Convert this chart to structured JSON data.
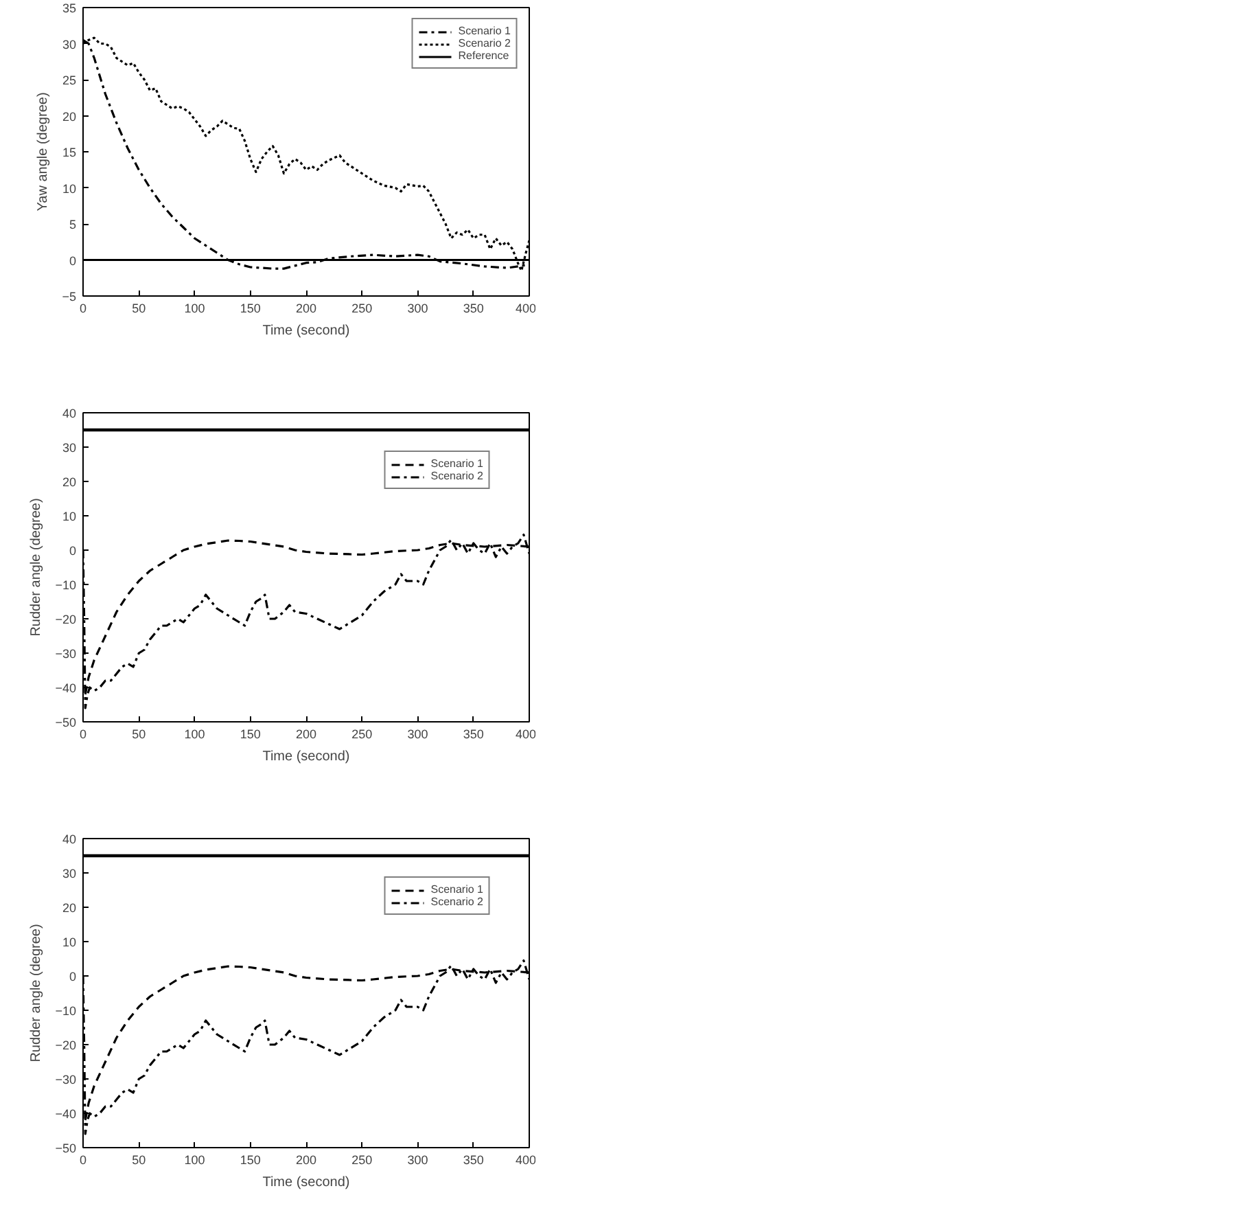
{
  "chart_data": [
    {
      "type": "line",
      "xlabel": "Time (second)",
      "ylabel": "Yaw angle (degree)",
      "xlim": [
        0,
        400
      ],
      "ylim": [
        -5,
        35
      ],
      "xticks": [
        0,
        50,
        100,
        150,
        200,
        250,
        300,
        350,
        400
      ],
      "yticks": [
        -5,
        0,
        5,
        10,
        15,
        20,
        25,
        30,
        35
      ],
      "grid": false,
      "legend": "top right",
      "series": [
        {
          "name": "Scenario 1",
          "color": "#000000",
          "line_style": "dashdot",
          "x": [
            0,
            5,
            10,
            15,
            20,
            30,
            40,
            50,
            60,
            70,
            80,
            90,
            100,
            110,
            120,
            130,
            140,
            150,
            160,
            170,
            180,
            190,
            200,
            210,
            220,
            240,
            260,
            280,
            300,
            310,
            320,
            340,
            360,
            380,
            390,
            400
          ],
          "values": [
            30.5,
            30,
            28,
            25.5,
            23,
            19,
            15.5,
            12.5,
            10,
            7.8,
            6,
            4.5,
            3,
            2,
            1,
            0,
            -0.6,
            -1,
            -1.1,
            -1.2,
            -1.2,
            -0.8,
            -0.4,
            -0.3,
            0.2,
            0.5,
            0.7,
            0.5,
            0.7,
            0.5,
            -0.2,
            -0.5,
            -0.9,
            -1.1,
            -0.9,
            -0.6
          ]
        },
        {
          "name": "Scenario 2",
          "color": "#000000",
          "line_style": "dotted",
          "x": [
            0,
            5,
            10,
            15,
            20,
            25,
            30,
            35,
            40,
            45,
            50,
            55,
            60,
            65,
            70,
            80,
            85,
            90,
            95,
            100,
            105,
            110,
            115,
            120,
            125,
            130,
            135,
            140,
            145,
            150,
            155,
            160,
            165,
            170,
            175,
            180,
            185,
            190,
            195,
            200,
            205,
            210,
            215,
            220,
            230,
            235,
            240,
            250,
            260,
            270,
            280,
            285,
            290,
            300,
            305,
            310,
            315,
            320,
            325,
            330,
            335,
            340,
            345,
            350,
            355,
            360,
            365,
            370,
            375,
            380,
            385,
            390,
            393,
            397,
            400
          ],
          "values": [
            30,
            30.5,
            30.8,
            30,
            30,
            29.5,
            28,
            27.5,
            27,
            27.3,
            26,
            25,
            23.5,
            23.8,
            22,
            21,
            21.3,
            21,
            20.5,
            19.5,
            18.5,
            17.2,
            18,
            18.5,
            19.3,
            18.8,
            18.3,
            18.2,
            16.5,
            14,
            12.2,
            14,
            15,
            15.8,
            14.5,
            12,
            13.3,
            14,
            13.5,
            12.5,
            13,
            12.5,
            13.3,
            13.8,
            14.5,
            13.5,
            13,
            12,
            11,
            10.3,
            10,
            9.5,
            10.5,
            10.2,
            10.3,
            9.5,
            8,
            6.5,
            5,
            3,
            3.8,
            3.5,
            4.2,
            3,
            3.5,
            3.5,
            1.5,
            3,
            2,
            2.5,
            1.5,
            -0.5,
            -1.5,
            1,
            2.7
          ]
        },
        {
          "name": "Reference",
          "color": "#000000",
          "line_style": "solid",
          "x": [
            0,
            400
          ],
          "values": [
            0,
            0
          ]
        }
      ]
    },
    {
      "type": "line",
      "xlabel": "Time (second)",
      "ylabel": "Rudder angle (degree)",
      "xlim": [
        0,
        400
      ],
      "ylim": [
        -50,
        40
      ],
      "xticks": [
        0,
        50,
        100,
        150,
        200,
        250,
        300,
        350,
        400
      ],
      "yticks": [
        -50,
        -40,
        -30,
        -20,
        -10,
        0,
        10,
        20,
        30,
        40
      ],
      "grid": false,
      "legend": "top right",
      "ref_lines": [
        {
          "axis": "y",
          "value": 35,
          "color": "#000000"
        }
      ],
      "series": [
        {
          "name": "Scenario 1",
          "color": "#000000",
          "line_style": "dashed",
          "x": [
            2,
            5,
            10,
            20,
            30,
            40,
            50,
            60,
            70,
            80,
            90,
            100,
            110,
            120,
            130,
            140,
            150,
            160,
            170,
            180,
            190,
            200,
            220,
            240,
            250,
            260,
            280,
            300,
            310,
            320,
            330,
            340,
            360,
            380,
            400
          ],
          "values": [
            -42,
            -37,
            -32,
            -25,
            -18,
            -13,
            -9,
            -6,
            -4,
            -2,
            0,
            1,
            1.8,
            2.3,
            2.8,
            2.7,
            2.5,
            2,
            1.5,
            1,
            0,
            -0.5,
            -1,
            -1.2,
            -1.3,
            -1,
            -0.3,
            0,
            0.5,
            1.5,
            2,
            1.5,
            1,
            1.5,
            1
          ]
        },
        {
          "name": "Scenario 2",
          "color": "#000000",
          "line_style": "dashdot",
          "x": [
            0,
            1,
            2,
            4,
            6,
            10,
            15,
            20,
            25,
            30,
            35,
            40,
            45,
            50,
            55,
            60,
            65,
            70,
            75,
            80,
            85,
            90,
            95,
            100,
            105,
            110,
            115,
            120,
            130,
            140,
            145,
            150,
            155,
            160,
            163,
            167,
            172,
            180,
            185,
            190,
            200,
            210,
            220,
            230,
            240,
            250,
            255,
            260,
            270,
            280,
            285,
            290,
            300,
            305,
            310,
            315,
            320,
            325,
            330,
            335,
            340,
            345,
            350,
            355,
            360,
            365,
            370,
            375,
            380,
            385,
            390,
            395,
            400
          ],
          "values": [
            0,
            -20,
            -46,
            -42,
            -40,
            -41,
            -40,
            -38,
            -38,
            -36,
            -34,
            -33,
            -34,
            -30,
            -29,
            -26,
            -24,
            -22,
            -22,
            -21,
            -20,
            -21,
            -19,
            -17,
            -16,
            -13,
            -15,
            -17,
            -19,
            -21,
            -22,
            -18,
            -15,
            -14,
            -13,
            -20,
            -20,
            -18,
            -16,
            -18,
            -18.5,
            -20,
            -21.5,
            -23,
            -21,
            -19,
            -17,
            -15,
            -12,
            -10,
            -7,
            -9,
            -9,
            -10,
            -6,
            -3,
            0,
            1,
            3,
            0,
            2,
            -1,
            2,
            0,
            -1,
            2,
            -2,
            1,
            -1,
            1,
            2,
            4.5,
            -1
          ]
        }
      ]
    },
    {
      "type": "line",
      "xlabel": "Time (second)",
      "ylabel": "Rudder angle (degree)",
      "xlim": [
        0,
        400
      ],
      "ylim": [
        -50,
        40
      ],
      "xticks": [
        0,
        50,
        100,
        150,
        200,
        250,
        300,
        350,
        400
      ],
      "yticks": [
        -50,
        -40,
        -30,
        -20,
        -10,
        0,
        10,
        20,
        30,
        40
      ],
      "grid": false,
      "legend": "top right",
      "ref_lines": [
        {
          "axis": "y",
          "value": 35,
          "color": "#000000"
        }
      ],
      "series": [
        {
          "name": "Scenario 1",
          "color": "#000000",
          "line_style": "dashed",
          "x": [
            2,
            5,
            10,
            20,
            30,
            40,
            50,
            60,
            70,
            80,
            90,
            100,
            110,
            120,
            130,
            140,
            150,
            160,
            170,
            180,
            190,
            200,
            220,
            240,
            250,
            260,
            280,
            300,
            310,
            320,
            330,
            340,
            360,
            380,
            400
          ],
          "values": [
            -42,
            -37,
            -32,
            -25,
            -18,
            -13,
            -9,
            -6,
            -4,
            -2,
            0,
            1,
            1.8,
            2.3,
            2.8,
            2.7,
            2.5,
            2,
            1.5,
            1,
            0,
            -0.5,
            -1,
            -1.2,
            -1.3,
            -1,
            -0.3,
            0,
            0.5,
            1.5,
            2,
            1.5,
            1,
            1.5,
            1
          ]
        },
        {
          "name": "Scenario 2",
          "color": "#000000",
          "line_style": "dashdot",
          "x": [
            0,
            1,
            2,
            4,
            6,
            10,
            15,
            20,
            25,
            30,
            35,
            40,
            45,
            50,
            55,
            60,
            65,
            70,
            75,
            80,
            85,
            90,
            95,
            100,
            105,
            110,
            115,
            120,
            130,
            140,
            145,
            150,
            155,
            160,
            163,
            167,
            172,
            180,
            185,
            190,
            200,
            210,
            220,
            230,
            240,
            250,
            255,
            260,
            270,
            280,
            285,
            290,
            300,
            305,
            310,
            315,
            320,
            325,
            330,
            335,
            340,
            345,
            350,
            355,
            360,
            365,
            370,
            375,
            380,
            385,
            390,
            395,
            400
          ],
          "values": [
            0,
            -20,
            -46,
            -42,
            -40,
            -41,
            -40,
            -38,
            -38,
            -36,
            -34,
            -33,
            -34,
            -30,
            -29,
            -26,
            -24,
            -22,
            -22,
            -21,
            -20,
            -21,
            -19,
            -17,
            -16,
            -13,
            -15,
            -17,
            -19,
            -21,
            -22,
            -18,
            -15,
            -14,
            -13,
            -20,
            -20,
            -18,
            -16,
            -18,
            -18.5,
            -20,
            -21.5,
            -23,
            -21,
            -19,
            -17,
            -15,
            -12,
            -10,
            -7,
            -9,
            -9,
            -10,
            -6,
            -3,
            0,
            1,
            3,
            0,
            2,
            -1,
            2,
            0,
            -1,
            2,
            -2,
            1,
            -1,
            1,
            2,
            4.5,
            -1
          ]
        }
      ]
    }
  ]
}
